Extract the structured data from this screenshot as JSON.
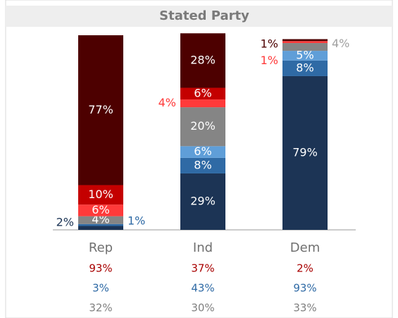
{
  "chart_data": {
    "type": "stacked_bar",
    "title": "Stated Party",
    "categories": [
      "Rep",
      "Ind",
      "Dem"
    ],
    "ylim": [
      0,
      100
    ],
    "series": [
      {
        "color": "#1c3455",
        "values": [
          2,
          29,
          79
        ],
        "value_labels": [
          "2%",
          "29%",
          "79%"
        ]
      },
      {
        "color": "#2f6aa5",
        "values": [
          1,
          8,
          8
        ],
        "value_labels": [
          "1%",
          "8%",
          "8%"
        ]
      },
      {
        "color": "#5f9ed8",
        "values": [
          null,
          6,
          5
        ],
        "value_labels": [
          null,
          "6%",
          "5%"
        ]
      },
      {
        "color": "#858585",
        "values": [
          4,
          20,
          4
        ],
        "value_labels": [
          "4%",
          "20%",
          "4%"
        ]
      },
      {
        "color": "#ff3a3a",
        "values": [
          6,
          4,
          1
        ],
        "value_labels": [
          "6%",
          "4%",
          "1%"
        ]
      },
      {
        "color": "#c40000",
        "values": [
          10,
          6,
          null
        ],
        "value_labels": [
          "10%",
          "6%",
          null
        ]
      },
      {
        "color": "#4d0000",
        "values": [
          77,
          28,
          1
        ],
        "value_labels": [
          "77%",
          "28%",
          "1%"
        ]
      }
    ],
    "summary_rows": [
      {
        "color": "#a80000",
        "values": [
          93,
          37,
          2
        ],
        "value_labels": [
          "93%",
          "37%",
          "2%"
        ]
      },
      {
        "color": "#2f6aa5",
        "values": [
          3,
          43,
          93
        ],
        "value_labels": [
          "3%",
          "43%",
          "93%"
        ]
      },
      {
        "color": "#808080",
        "values": [
          32,
          30,
          33
        ],
        "value_labels": [
          "32%",
          "30%",
          "33%"
        ]
      }
    ]
  }
}
